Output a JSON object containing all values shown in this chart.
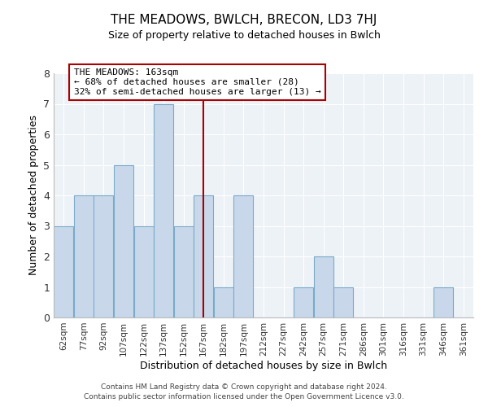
{
  "title": "THE MEADOWS, BWLCH, BRECON, LD3 7HJ",
  "subtitle": "Size of property relative to detached houses in Bwlch",
  "xlabel": "Distribution of detached houses by size in Bwlch",
  "ylabel": "Number of detached properties",
  "bins": [
    "62sqm",
    "77sqm",
    "92sqm",
    "107sqm",
    "122sqm",
    "137sqm",
    "152sqm",
    "167sqm",
    "182sqm",
    "197sqm",
    "212sqm",
    "227sqm",
    "242sqm",
    "257sqm",
    "271sqm",
    "286sqm",
    "301sqm",
    "316sqm",
    "331sqm",
    "346sqm",
    "361sqm"
  ],
  "values": [
    3,
    4,
    4,
    5,
    3,
    7,
    3,
    4,
    1,
    4,
    0,
    0,
    1,
    2,
    1,
    0,
    0,
    0,
    0,
    1,
    0
  ],
  "bar_color": "#c8d8ea",
  "bar_edge_color": "#7aaac8",
  "vline_x": 7,
  "vline_color": "#aa0000",
  "annotation_title": "THE MEADOWS: 163sqm",
  "annotation_line1": "← 68% of detached houses are smaller (28)",
  "annotation_line2": "32% of semi-detached houses are larger (13) →",
  "annotation_box_edge_color": "#aa0000",
  "ylim": [
    0,
    8
  ],
  "yticks": [
    0,
    1,
    2,
    3,
    4,
    5,
    6,
    7,
    8
  ],
  "plot_bg_color": "#edf2f7",
  "grid_color": "#ffffff",
  "footer1": "Contains HM Land Registry data © Crown copyright and database right 2024.",
  "footer2": "Contains public sector information licensed under the Open Government Licence v3.0."
}
